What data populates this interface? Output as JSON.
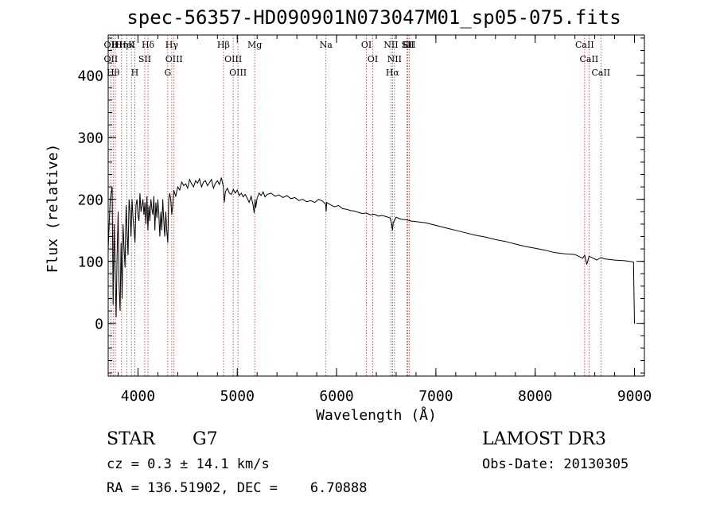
{
  "chart_data": {
    "type": "line",
    "title": "spec-56357-HD090901N073047M01_sp05-075.fits",
    "xlabel": "Wavelength (Å)",
    "ylabel": "Flux (relative)",
    "xlim": [
      3700,
      9100
    ],
    "ylim": [
      -85,
      465
    ],
    "xticks": [
      {
        "value": 4000,
        "label": "4000"
      },
      {
        "value": 5000,
        "label": "5000"
      },
      {
        "value": 6000,
        "label": "6000"
      },
      {
        "value": 7000,
        "label": "7000"
      },
      {
        "value": 8000,
        "label": "8000"
      },
      {
        "value": 9000,
        "label": "9000"
      }
    ],
    "yticks": [
      {
        "value": 0,
        "label": "0"
      },
      {
        "value": 100,
        "label": "100"
      },
      {
        "value": 200,
        "label": "200"
      },
      {
        "value": 300,
        "label": "300"
      },
      {
        "value": 400,
        "label": "400"
      }
    ],
    "series": [
      {
        "name": "spectrum",
        "x": [
          3700,
          3720,
          3740,
          3750,
          3760,
          3770,
          3780,
          3790,
          3800,
          3810,
          3820,
          3830,
          3840,
          3850,
          3860,
          3870,
          3880,
          3890,
          3900,
          3910,
          3920,
          3930,
          3940,
          3950,
          3960,
          3970,
          3980,
          3990,
          4000,
          4010,
          4020,
          4030,
          4040,
          4050,
          4060,
          4070,
          4080,
          4090,
          4100,
          4110,
          4120,
          4130,
          4140,
          4150,
          4160,
          4170,
          4180,
          4190,
          4200,
          4210,
          4220,
          4230,
          4240,
          4250,
          4260,
          4270,
          4280,
          4290,
          4300,
          4310,
          4320,
          4330,
          4340,
          4350,
          4360,
          4380,
          4400,
          4420,
          4440,
          4460,
          4480,
          4500,
          4520,
          4540,
          4560,
          4580,
          4600,
          4620,
          4640,
          4660,
          4680,
          4700,
          4720,
          4740,
          4760,
          4780,
          4800,
          4820,
          4840,
          4860,
          4870,
          4880,
          4900,
          4920,
          4940,
          4960,
          4980,
          5000,
          5020,
          5040,
          5060,
          5080,
          5100,
          5120,
          5140,
          5160,
          5170,
          5180,
          5185,
          5200,
          5220,
          5240,
          5260,
          5280,
          5300,
          5340,
          5380,
          5420,
          5460,
          5500,
          5540,
          5580,
          5620,
          5660,
          5700,
          5740,
          5780,
          5820,
          5860,
          5890,
          5895,
          5900,
          5940,
          5980,
          6020,
          6060,
          6100,
          6140,
          6180,
          6220,
          6260,
          6300,
          6340,
          6380,
          6420,
          6460,
          6500,
          6540,
          6555,
          6563,
          6570,
          6600,
          6650,
          6700,
          6750,
          6800,
          6900,
          7000,
          7100,
          7200,
          7300,
          7400,
          7500,
          7600,
          7700,
          7800,
          7900,
          8000,
          8100,
          8200,
          8300,
          8400,
          8480,
          8498,
          8520,
          8542,
          8560,
          8620,
          8662,
          8700,
          8800,
          8900,
          8950,
          8990,
          9000,
          9005
        ],
        "values": [
          120,
          200,
          220,
          30,
          160,
          90,
          10,
          110,
          180,
          60,
          20,
          130,
          40,
          160,
          120,
          90,
          190,
          150,
          110,
          200,
          180,
          140,
          200,
          170,
          150,
          130,
          190,
          200,
          175,
          165,
          210,
          180,
          190,
          200,
          175,
          195,
          160,
          205,
          150,
          190,
          165,
          200,
          185,
          175,
          205,
          150,
          195,
          170,
          200,
          175,
          140,
          180,
          150,
          200,
          165,
          140,
          180,
          150,
          130,
          200,
          210,
          200,
          175,
          190,
          215,
          205,
          220,
          215,
          228,
          222,
          225,
          218,
          232,
          225,
          220,
          230,
          226,
          233,
          220,
          228,
          230,
          222,
          227,
          232,
          218,
          226,
          230,
          224,
          235,
          220,
          195,
          212,
          218,
          210,
          208,
          216,
          210,
          215,
          206,
          210,
          204,
          208,
          202,
          195,
          205,
          190,
          178,
          200,
          186,
          202,
          210,
          206,
          212,
          204,
          208,
          210,
          205,
          207,
          203,
          206,
          201,
          203,
          198,
          200,
          196,
          198,
          195,
          200,
          197,
          192,
          180,
          195,
          191,
          188,
          190,
          185,
          184,
          182,
          181,
          179,
          177,
          178,
          175,
          176,
          173,
          174,
          172,
          170,
          160,
          150,
          162,
          171,
          168,
          167,
          165,
          164,
          162,
          158,
          154,
          150,
          146,
          142,
          139,
          135,
          132,
          128,
          124,
          121,
          118,
          114,
          112,
          111,
          105,
          110,
          95,
          108,
          107,
          102,
          106,
          104,
          102,
          101,
          100,
          99,
          0,
          0
        ]
      }
    ],
    "lines": [
      {
        "x": 3750,
        "label": "Hθ"
      },
      {
        "x": 3727,
        "label": "OII"
      },
      {
        "x": 3727,
        "label": "OII"
      },
      {
        "x": 3772,
        "label": "H"
      },
      {
        "x": 3835,
        "label": "Hη"
      },
      {
        "x": 3889,
        "label": "HeI"
      },
      {
        "x": 3934,
        "label": "K"
      },
      {
        "x": 3968,
        "label": "H"
      },
      {
        "x": 4068,
        "label": "SII"
      },
      {
        "x": 4101,
        "label": "Hδ"
      },
      {
        "x": 4300,
        "label": "G"
      },
      {
        "x": 4340,
        "label": "Hγ"
      },
      {
        "x": 4363,
        "label": "OIII"
      },
      {
        "x": 4861,
        "label": "Hβ"
      },
      {
        "x": 4959,
        "label": "OIII"
      },
      {
        "x": 5007,
        "label": "OIII"
      },
      {
        "x": 5175,
        "label": "Mg"
      },
      {
        "x": 5893,
        "label": "Na"
      },
      {
        "x": 6300,
        "label": "OI"
      },
      {
        "x": 6364,
        "label": "OI"
      },
      {
        "x": 6548,
        "label": "NII"
      },
      {
        "x": 6563,
        "label": "Hα"
      },
      {
        "x": 6583,
        "label": "NII"
      },
      {
        "x": 6707,
        "label": "Li"
      },
      {
        "x": 6716,
        "label": "SII"
      },
      {
        "x": 6731,
        "label": "SII"
      },
      {
        "x": 8498,
        "label": "CaII"
      },
      {
        "x": 8542,
        "label": "CaII"
      },
      {
        "x": 8662,
        "label": "CaII"
      }
    ],
    "line_color": "#c62828",
    "trace_color": "#000000"
  },
  "info": {
    "object_class": "STAR",
    "subclass": "G7",
    "survey": "LAMOST DR3",
    "cz": "cz = 0.3 ± 14.1 km/s",
    "obs_date": "Obs-Date: 20130305",
    "coords": "RA = 136.51902, DEC =    6.70888"
  }
}
